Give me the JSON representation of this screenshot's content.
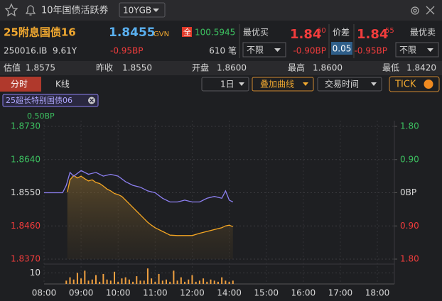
{
  "toolbar": {
    "title": "10年国债活跃券",
    "selector": "10YGB"
  },
  "quote": {
    "name": "25附息国债16",
    "price": "1.8455",
    "source": "GVN",
    "flag": "全",
    "clean_price": "100.5945",
    "code": "250016.IB",
    "tenor": "9.61Y",
    "change": "-0.95BP",
    "trades": "610 笔"
  },
  "best_bid": {
    "label": "最优买",
    "price": "1.84",
    "price_suffix": "60",
    "change": "-0.90BP",
    "filter": "不限"
  },
  "spread": {
    "label": "价差",
    "value": "0.05"
  },
  "best_ask": {
    "label": "最优卖",
    "price": "1.84",
    "price_suffix": "55",
    "change": "-0.95BP",
    "filter": "不限"
  },
  "stats": [
    {
      "label": "估值",
      "value": "1.8575"
    },
    {
      "label": "昨收",
      "value": "1.8550"
    },
    {
      "label": "开盘",
      "value": "1.8600"
    },
    {
      "label": "最高",
      "value": "1.8600"
    },
    {
      "label": "最低",
      "value": "1.8420"
    }
  ],
  "tabs": [
    "分时",
    "K线"
  ],
  "controls": [
    "1日",
    "叠加曲线",
    "交易时间",
    "TICK"
  ],
  "chart_data": {
    "type": "line",
    "overlay_value": "0.50BP",
    "xlim": [
      8,
      17.46
    ],
    "xticks": [
      {
        "value": 8,
        "label": "08:00"
      },
      {
        "value": 9,
        "label": "09:00"
      },
      {
        "value": 10,
        "label": "10:00"
      },
      {
        "value": 11,
        "label": "11:00"
      },
      {
        "value": 12,
        "label": "12:00"
      },
      {
        "value": 13,
        "label": "14:00"
      },
      {
        "value": 14,
        "label": "15:00"
      },
      {
        "value": 15,
        "label": "16:00"
      },
      {
        "value": 16,
        "label": "17:00"
      },
      {
        "value": 17,
        "label": "18:00"
      }
    ],
    "ylim": [
      1.837,
      1.873
    ],
    "yticks": [
      {
        "value": 1.837,
        "label": "1.8370"
      },
      {
        "value": 1.846,
        "label": "1.8460"
      },
      {
        "value": 1.855,
        "label": "1.8550"
      },
      {
        "value": 1.864,
        "label": "1.8640"
      },
      {
        "value": 1.873,
        "label": "1.8730"
      }
    ],
    "y2lim": [
      -1.8,
      1.8
    ],
    "y2ticks": [
      {
        "value": -1.8,
        "label": "1.80"
      },
      {
        "value": -0.9,
        "label": "0.90"
      },
      {
        "value": 0,
        "label": "0BP"
      },
      {
        "value": 0.9,
        "label": "0.90"
      },
      {
        "value": 1.8,
        "label": "1.80"
      }
    ],
    "volume_ylim": [
      0,
      16
    ],
    "volume_yticks": [
      10
    ],
    "grid": true,
    "series": [
      {
        "color": "#f5a623",
        "axis": "y",
        "x": [
          8.63,
          8.7,
          8.8,
          8.9,
          9.0,
          9.1,
          9.2,
          9.3,
          9.4,
          9.5,
          9.6,
          9.7,
          9.8,
          9.9,
          10.0,
          10.1,
          10.2,
          10.3,
          10.4,
          10.5,
          10.6,
          10.7,
          10.8,
          10.9,
          11.0,
          11.1,
          11.2,
          11.3,
          11.4,
          11.6,
          11.8,
          12.0,
          12.2,
          12.4,
          12.6,
          12.8,
          12.9,
          13.0,
          13.1
        ],
        "values": [
          1.8552,
          1.8585,
          1.8597,
          1.859,
          1.8595,
          1.8588,
          1.8582,
          1.8585,
          1.8578,
          1.8575,
          1.8568,
          1.856,
          1.8555,
          1.8548,
          1.8545,
          1.854,
          1.853,
          1.852,
          1.851,
          1.85,
          1.849,
          1.848,
          1.847,
          1.8462,
          1.8455,
          1.845,
          1.8445,
          1.844,
          1.8435,
          1.8434,
          1.8434,
          1.8434,
          1.844,
          1.8445,
          1.845,
          1.8455,
          1.846,
          1.8462,
          1.8458
        ]
      },
      {
        "name": "25超长特别国债06",
        "color": "#8c7ff0",
        "axis": "y2",
        "x": [
          8.0,
          8.5,
          8.6,
          8.7,
          8.8,
          9.0,
          9.2,
          9.4,
          9.6,
          9.8,
          10.0,
          10.2,
          10.4,
          10.6,
          10.8,
          11.0,
          11.2,
          11.4,
          11.6,
          11.8,
          12.0,
          12.2,
          12.4,
          12.6,
          12.8,
          12.9,
          13.0,
          13.1
        ],
        "values": [
          0,
          0,
          0.2,
          0.55,
          0.45,
          0.6,
          0.5,
          0.55,
          0.45,
          0.5,
          0.45,
          0.3,
          0.2,
          0.15,
          0.05,
          0,
          -0.15,
          -0.25,
          -0.25,
          -0.2,
          -0.25,
          -0.25,
          -0.15,
          -0.1,
          -0.15,
          0.05,
          -0.2,
          -0.25
        ]
      },
      {
        "type": "bar",
        "color": "#f0a040",
        "axis": "volume",
        "x": [
          8.6,
          8.7,
          8.8,
          8.9,
          9.0,
          9.1,
          9.2,
          9.3,
          9.4,
          9.5,
          9.6,
          9.7,
          9.8,
          9.9,
          10.0,
          10.1,
          10.2,
          10.3,
          10.4,
          10.5,
          10.6,
          10.7,
          10.8,
          10.9,
          11.0,
          11.1,
          11.2,
          11.3,
          11.4,
          11.5,
          11.6,
          11.7,
          11.8,
          11.9,
          12.0,
          12.1,
          12.2,
          12.3,
          12.4,
          12.5,
          12.6,
          12.7,
          12.8,
          12.9,
          13.0,
          13.1
        ],
        "values": [
          3,
          6,
          4,
          10,
          5,
          12,
          3,
          4,
          8,
          2,
          9,
          4,
          3,
          11,
          2,
          5,
          6,
          4,
          2,
          7,
          3,
          3,
          14,
          5,
          2,
          9,
          3,
          4,
          2,
          12,
          3,
          6,
          2,
          4,
          8,
          2,
          3,
          5,
          2,
          4,
          3,
          2,
          6,
          3,
          2,
          3
        ]
      }
    ]
  }
}
